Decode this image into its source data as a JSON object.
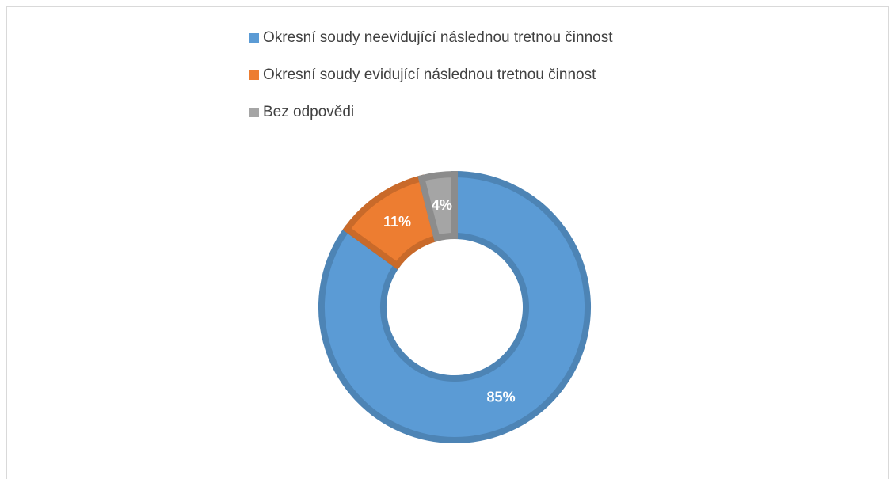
{
  "chart_data": {
    "type": "donut",
    "categories": [
      "Okresní soudy neevidující následnou tretnou činnost",
      "Okresní soudy evidující následnou tretnou činnost",
      "Bez odpovědi"
    ],
    "values": [
      85,
      11,
      4
    ],
    "value_labels": [
      "85%",
      "11%",
      "4%"
    ],
    "colors": [
      "#5b9bd5",
      "#ed7d31",
      "#a5a5a5"
    ],
    "legend": "top"
  }
}
